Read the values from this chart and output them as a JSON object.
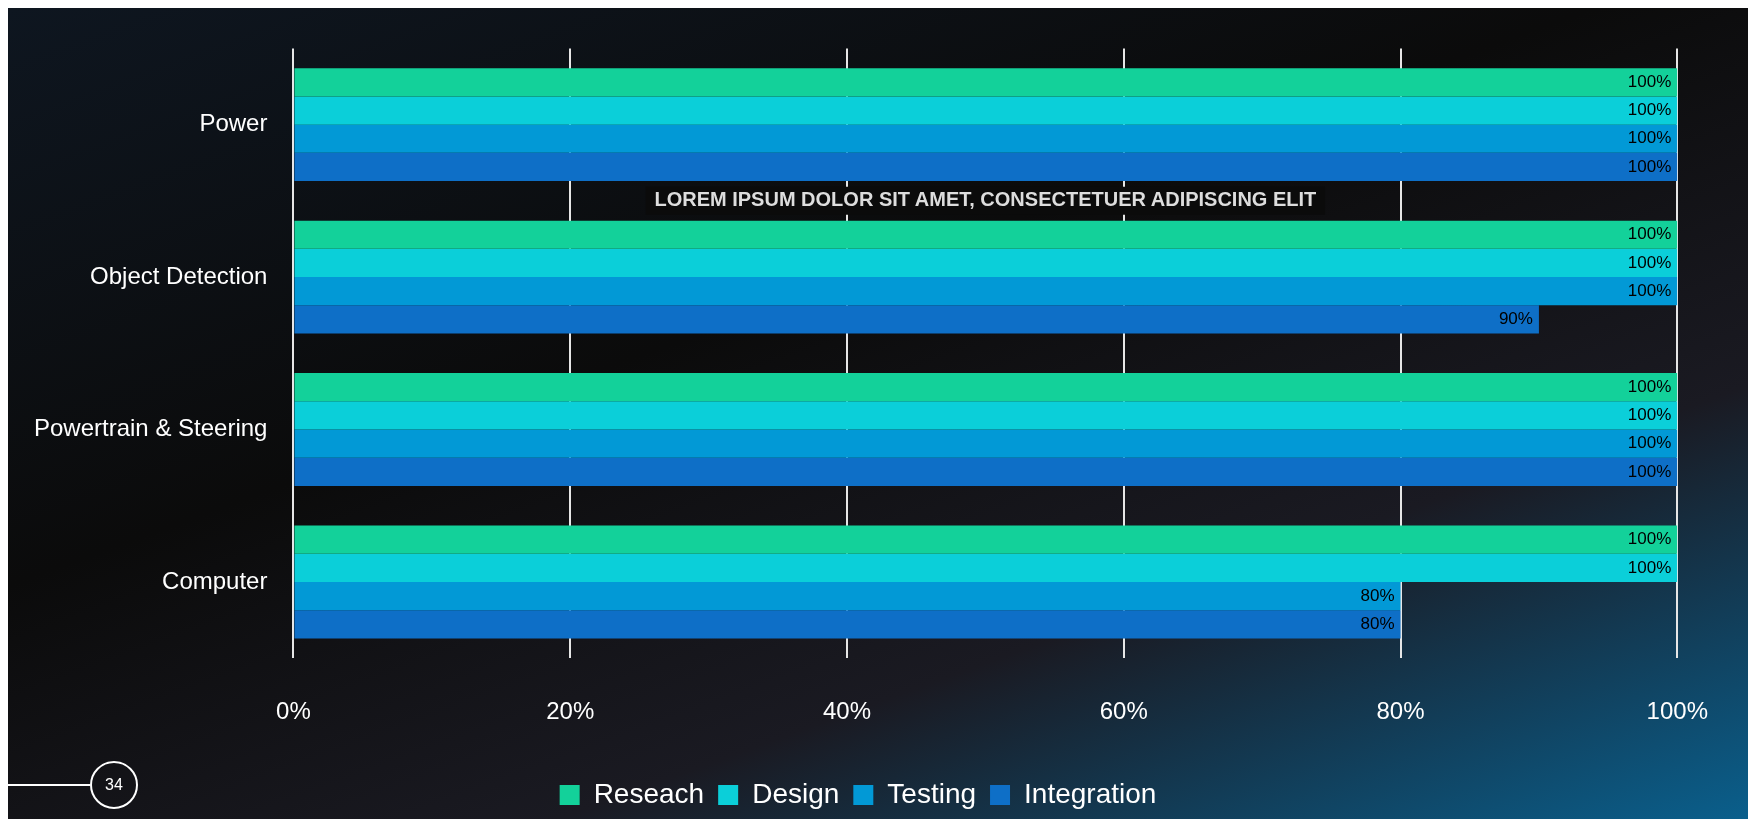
{
  "chart_data": {
    "type": "bar",
    "orientation": "horizontal",
    "categories": [
      "Power",
      "Object Detection",
      "Powertrain & Steering",
      "Computer"
    ],
    "series": [
      {
        "name": "Reseach",
        "color": "#13d19a",
        "values": [
          100,
          100,
          100,
          100
        ],
        "value_labels": [
          "100%",
          "100%",
          "100%",
          "100%"
        ]
      },
      {
        "name": "Design",
        "color": "#0bcfd9",
        "values": [
          100,
          100,
          100,
          100
        ],
        "value_labels": [
          "100%",
          "100%",
          "100%",
          "100%"
        ]
      },
      {
        "name": "Testing",
        "color": "#0299d6",
        "values": [
          100,
          100,
          100,
          80
        ],
        "value_labels": [
          "100%",
          "100%",
          "100%",
          "80%"
        ]
      },
      {
        "name": "Integration",
        "color": "#0e6fc7",
        "values": [
          100,
          90,
          100,
          80
        ],
        "value_labels": [
          "100%",
          "90%",
          "100%",
          "80%"
        ]
      }
    ],
    "xlim": [
      0,
      100
    ],
    "xticks": [
      {
        "value": 0,
        "label": "0%"
      },
      {
        "value": 20,
        "label": "20%"
      },
      {
        "value": 40,
        "label": "40%"
      },
      {
        "value": 60,
        "label": "60%"
      },
      {
        "value": 80,
        "label": "80%"
      },
      {
        "value": 100,
        "label": "100%"
      }
    ],
    "grid": "x",
    "legend": "bottom",
    "annotations": [
      "LOREM IPSUM DOLOR SIT AMET, CONSECTETUER ADIPISCING ELIT",
      "34"
    ]
  }
}
